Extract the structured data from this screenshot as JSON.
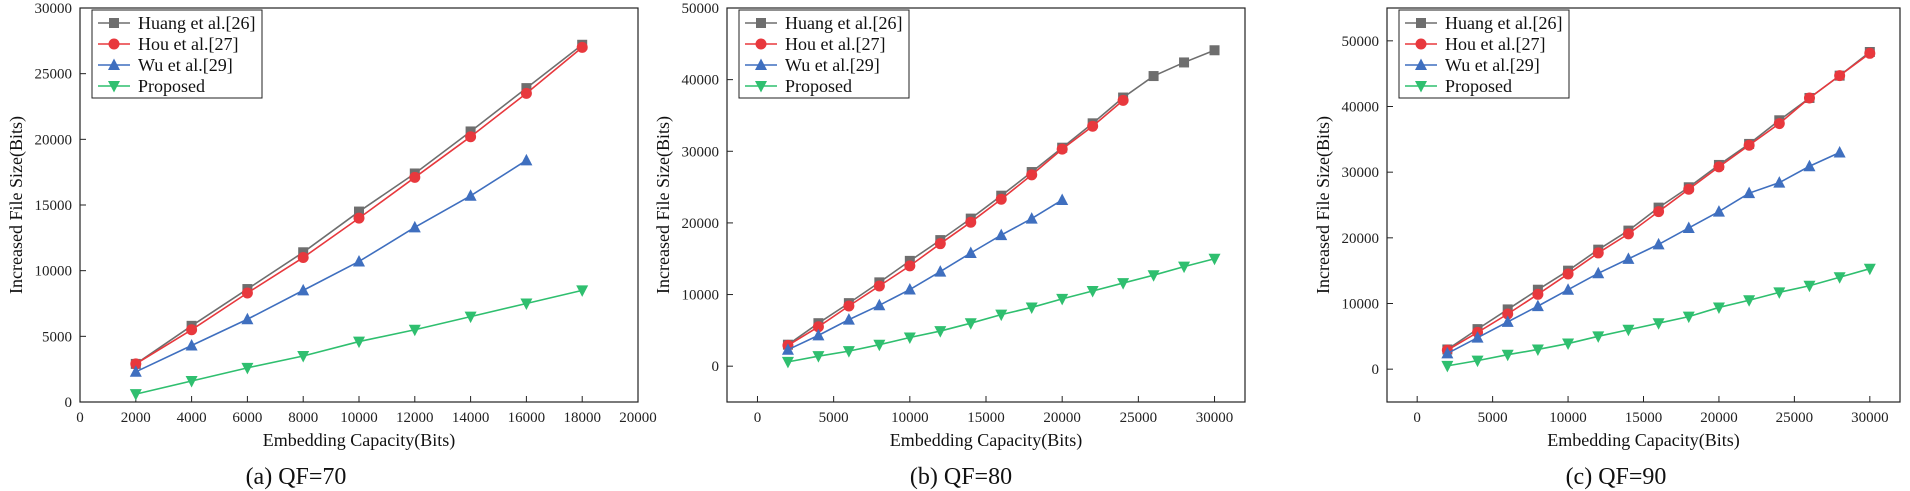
{
  "figure": {
    "panels_count": 3
  },
  "chart_data": [
    {
      "type": "line",
      "caption": "(a) QF=70",
      "xlabel": "Embedding Capacity(Bits)",
      "ylabel": "Increased File Size(Bits)",
      "xlim": [
        0,
        20000
      ],
      "ylim": [
        0,
        30000
      ],
      "xticks": [
        0,
        2000,
        4000,
        6000,
        8000,
        10000,
        12000,
        14000,
        16000,
        18000,
        20000
      ],
      "yticks": [
        0,
        5000,
        10000,
        15000,
        20000,
        25000,
        30000
      ],
      "legend_position": "top-left",
      "series": [
        {
          "name": "Huang et al.[26]",
          "color": "#6e6e6e",
          "marker": "square",
          "x": [
            2000,
            4000,
            6000,
            8000,
            10000,
            12000,
            14000,
            16000,
            18000
          ],
          "y": [
            2900,
            5800,
            8600,
            11400,
            14500,
            17400,
            20600,
            23900,
            27200
          ]
        },
        {
          "name": "Hou et al.[27]",
          "color": "#e8383d",
          "marker": "circle",
          "x": [
            2000,
            4000,
            6000,
            8000,
            10000,
            12000,
            14000,
            16000,
            18000
          ],
          "y": [
            2900,
            5500,
            8300,
            11000,
            14000,
            17100,
            20200,
            23500,
            27000
          ]
        },
        {
          "name": "Wu et al.[29]",
          "color": "#3f6fbf",
          "marker": "triangle-up",
          "x": [
            2000,
            4000,
            6000,
            8000,
            10000,
            12000,
            14000,
            16000
          ],
          "y": [
            2300,
            4300,
            6300,
            8500,
            10700,
            13300,
            15700,
            18400
          ]
        },
        {
          "name": "Proposed",
          "color": "#2fbf6f",
          "marker": "triangle-down",
          "x": [
            2000,
            4000,
            6000,
            8000,
            10000,
            12000,
            14000,
            16000,
            18000
          ],
          "y": [
            600,
            1600,
            2600,
            3500,
            4600,
            5500,
            6500,
            7500,
            8500
          ]
        }
      ]
    },
    {
      "type": "line",
      "caption": "(b) QF=80",
      "xlabel": "Embedding Capacity(Bits)",
      "ylabel": "Increased File Size(Bits)",
      "xlim": [
        -2000,
        32000
      ],
      "ylim": [
        -5000,
        50000
      ],
      "xticks": [
        0,
        5000,
        10000,
        15000,
        20000,
        25000,
        30000
      ],
      "yticks": [
        0,
        10000,
        20000,
        30000,
        40000,
        50000
      ],
      "legend_position": "top-left",
      "series": [
        {
          "name": "Huang et al.[26]",
          "color": "#6e6e6e",
          "marker": "square",
          "x": [
            2000,
            4000,
            6000,
            8000,
            10000,
            12000,
            14000,
            16000,
            18000,
            20000,
            22000,
            24000,
            26000,
            28000,
            30000
          ],
          "y": [
            3000,
            6000,
            8800,
            11700,
            14700,
            17600,
            20600,
            23800,
            27100,
            30500,
            33900,
            37500,
            40500,
            42400,
            44100
          ]
        },
        {
          "name": "Hou et al.[27]",
          "color": "#e8383d",
          "marker": "circle",
          "x": [
            2000,
            4000,
            6000,
            8000,
            10000,
            12000,
            14000,
            16000,
            18000,
            20000,
            22000,
            24000
          ],
          "y": [
            2900,
            5500,
            8400,
            11200,
            14000,
            17100,
            20100,
            23300,
            26700,
            30300,
            33500,
            37100
          ]
        },
        {
          "name": "Wu et al.[29]",
          "color": "#3f6fbf",
          "marker": "triangle-up",
          "x": [
            2000,
            4000,
            6000,
            8000,
            10000,
            12000,
            14000,
            16000,
            18000,
            20000
          ],
          "y": [
            2300,
            4300,
            6500,
            8500,
            10700,
            13200,
            15800,
            18300,
            20600,
            23200
          ]
        },
        {
          "name": "Proposed",
          "color": "#2fbf6f",
          "marker": "triangle-down",
          "x": [
            2000,
            4000,
            6000,
            8000,
            10000,
            12000,
            14000,
            16000,
            18000,
            20000,
            22000,
            24000,
            26000,
            28000,
            30000
          ],
          "y": [
            600,
            1400,
            2100,
            3000,
            4000,
            4900,
            6000,
            7200,
            8200,
            9400,
            10500,
            11600,
            12700,
            13900,
            15000
          ]
        }
      ]
    },
    {
      "type": "line",
      "caption": "(c) QF=90",
      "xlabel": "Embedding Capacity(Bits)",
      "ylabel": "Increased File Size(Bits)",
      "xlim": [
        -2000,
        32000
      ],
      "ylim": [
        -5000,
        55000
      ],
      "xticks": [
        0,
        5000,
        10000,
        15000,
        20000,
        25000,
        30000
      ],
      "yticks": [
        0,
        10000,
        20000,
        30000,
        40000,
        50000
      ],
      "legend_position": "top-left",
      "series": [
        {
          "name": "Huang et al.[26]",
          "color": "#6e6e6e",
          "marker": "square",
          "x": [
            2000,
            4000,
            6000,
            8000,
            10000,
            12000,
            14000,
            16000,
            18000,
            20000,
            22000,
            24000,
            26000,
            28000,
            30000
          ],
          "y": [
            3000,
            6100,
            9100,
            12100,
            15000,
            18200,
            21100,
            24600,
            27700,
            31100,
            34300,
            37900,
            41300,
            44700,
            48300
          ]
        },
        {
          "name": "Hou et al.[27]",
          "color": "#e8383d",
          "marker": "circle",
          "x": [
            2000,
            4000,
            6000,
            8000,
            10000,
            12000,
            14000,
            16000,
            18000,
            20000,
            22000,
            24000,
            26000,
            28000,
            30000
          ],
          "y": [
            2900,
            5600,
            8400,
            11400,
            14500,
            17700,
            20600,
            24000,
            27400,
            30800,
            34100,
            37400,
            41300,
            44700,
            48100
          ]
        },
        {
          "name": "Wu et al.[29]",
          "color": "#3f6fbf",
          "marker": "triangle-up",
          "x": [
            2000,
            4000,
            6000,
            8000,
            10000,
            12000,
            14000,
            16000,
            18000,
            20000,
            22000,
            24000,
            26000,
            28000
          ],
          "y": [
            2400,
            4800,
            7200,
            9600,
            12100,
            14600,
            16800,
            19000,
            21500,
            24000,
            26800,
            28400,
            30900,
            33000
          ]
        },
        {
          "name": "Proposed",
          "color": "#2fbf6f",
          "marker": "triangle-down",
          "x": [
            2000,
            4000,
            6000,
            8000,
            10000,
            12000,
            14000,
            16000,
            18000,
            20000,
            22000,
            24000,
            26000,
            28000,
            30000
          ],
          "y": [
            500,
            1300,
            2200,
            3000,
            3900,
            5000,
            6000,
            7000,
            8000,
            9400,
            10500,
            11700,
            12700,
            14000,
            15300
          ]
        }
      ]
    }
  ]
}
